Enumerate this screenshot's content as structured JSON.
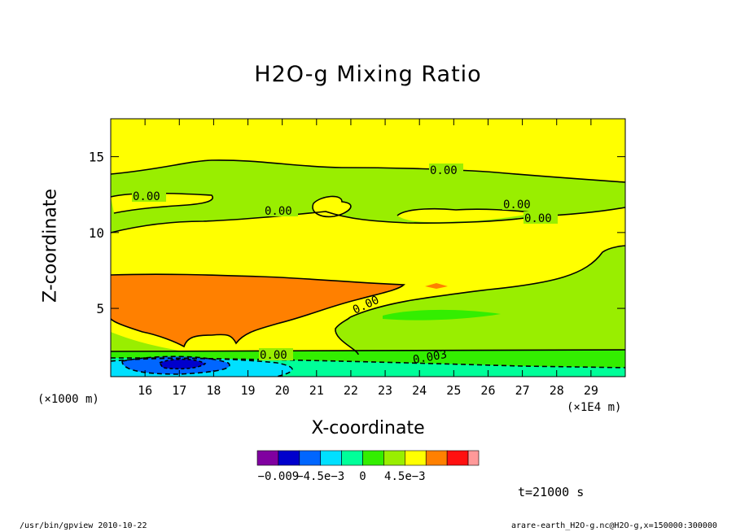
{
  "chart_data": {
    "type": "contour",
    "title": "H2O-g Mixing Ratio",
    "xlabel": "X-coordinate",
    "ylabel": "Z-coordinate",
    "x_unit_left": "(×1000 m)",
    "x_unit_right": "(×1E4 m)",
    "xlim": [
      15.0,
      30.0
    ],
    "ylim": [
      0.5,
      17.5
    ],
    "x_ticks": [
      "16",
      "17",
      "18",
      "19",
      "20",
      "21",
      "22",
      "23",
      "24",
      "25",
      "26",
      "27",
      "28",
      "29"
    ],
    "y_ticks": [
      "5",
      "10",
      "15"
    ],
    "contour_labels": [
      "0.00",
      "0.00",
      "0.00",
      "0.00",
      "0.00",
      "0.00",
      "0.00",
      "0.003"
    ],
    "colorbar": {
      "colors": [
        "#8000a0",
        "#0000cc",
        "#0066ff",
        "#00e0ff",
        "#00ff99",
        "#33ee00",
        "#99ee00",
        "#ffff00",
        "#ff8000",
        "#ff1010",
        "#ff9999"
      ],
      "labels": [
        "−0.009",
        "−4.5e−3",
        "0",
        "4.5e−3"
      ]
    },
    "time_label": "t=21000  s"
  },
  "footer": {
    "left": "/usr/bin/gpview   2010-10-22",
    "right": "arare-earth_H2O-g.nc@H2O-g,x=150000:300000"
  }
}
